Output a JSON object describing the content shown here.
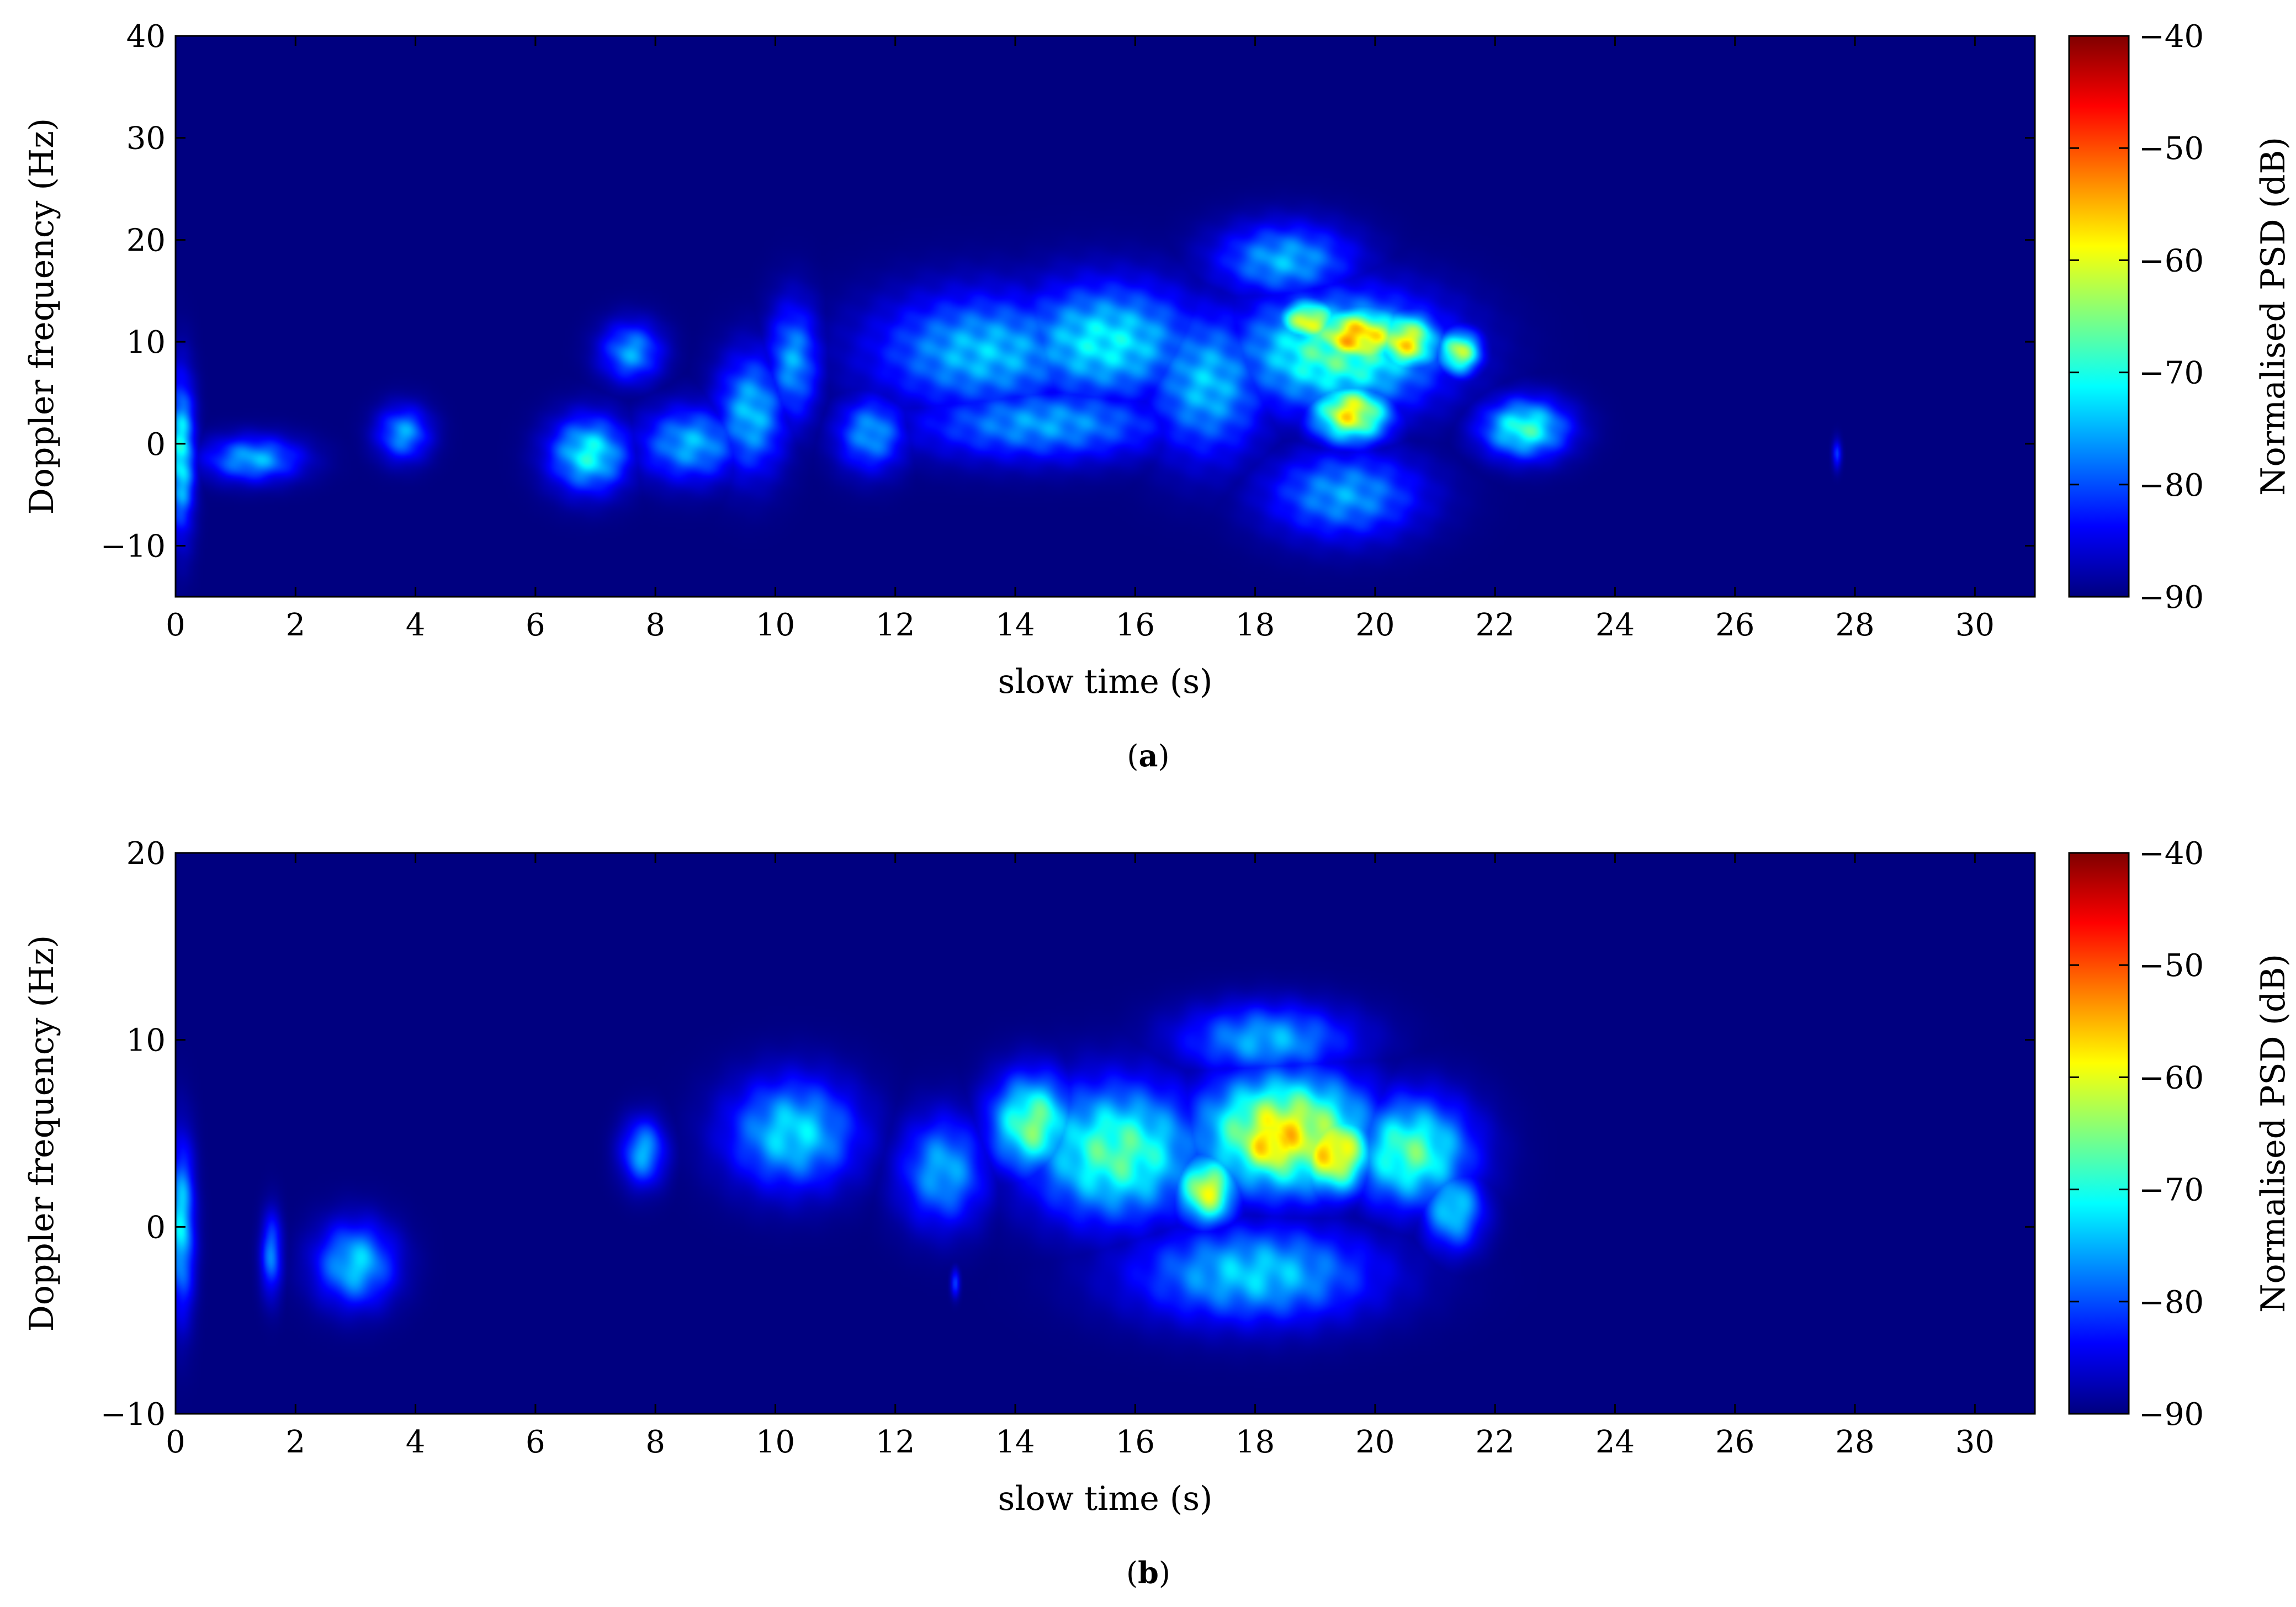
{
  "chart_data": [
    {
      "type": "heatmap",
      "caption": {
        "open": "(",
        "letter": "a",
        "close": ")"
      },
      "title": "",
      "xlabel": "slow time (s)",
      "ylabel": "Doppler frequency (Hz)",
      "xlim": [
        0,
        31
      ],
      "ylim": [
        -15,
        40
      ],
      "xticks": [
        "0",
        "2",
        "4",
        "6",
        "8",
        "10",
        "12",
        "14",
        "16",
        "18",
        "20",
        "22",
        "24",
        "26",
        "28",
        "30"
      ],
      "yticks": [
        "−10",
        "0",
        "10",
        "20",
        "30",
        "40"
      ],
      "ytick_values": [
        -10,
        0,
        10,
        20,
        30,
        40
      ],
      "colorbar": {
        "label": "Normalised PSD (dB)",
        "range": [
          -90,
          -40
        ],
        "ticks": [
          "−90",
          "−80",
          "−70",
          "−60",
          "−50",
          "−40"
        ],
        "tick_values": [
          -90,
          -80,
          -70,
          -60,
          -50,
          -40
        ]
      },
      "background_db": -90,
      "blobs": [
        {
          "t": 0.1,
          "f": -1,
          "st": 0.15,
          "sf": 5,
          "db": -68
        },
        {
          "t": 1.3,
          "f": -1.5,
          "st": 0.55,
          "sf": 1.5,
          "db": -73
        },
        {
          "t": 3.8,
          "f": 1,
          "st": 0.3,
          "sf": 1.8,
          "db": -74
        },
        {
          "t": 6.9,
          "f": -1,
          "st": 0.45,
          "sf": 2.5,
          "db": -68
        },
        {
          "t": 7.6,
          "f": 9,
          "st": 0.35,
          "sf": 2,
          "db": -74
        },
        {
          "t": 8.6,
          "f": 0,
          "st": 0.6,
          "sf": 2.5,
          "db": -73
        },
        {
          "t": 9.6,
          "f": 3,
          "st": 0.4,
          "sf": 4,
          "db": -72
        },
        {
          "t": 10.3,
          "f": 8,
          "st": 0.3,
          "sf": 4,
          "db": -74
        },
        {
          "t": 11.6,
          "f": 1,
          "st": 0.4,
          "sf": 2.5,
          "db": -74
        },
        {
          "t": 13.5,
          "f": 9,
          "st": 1.3,
          "sf": 4,
          "db": -72
        },
        {
          "t": 15.5,
          "f": 10,
          "st": 1.1,
          "sf": 4,
          "db": -69
        },
        {
          "t": 14.5,
          "f": 2,
          "st": 1.5,
          "sf": 2.5,
          "db": -74
        },
        {
          "t": 17.2,
          "f": 6,
          "st": 0.7,
          "sf": 5,
          "db": -72
        },
        {
          "t": 19.4,
          "f": 9,
          "st": 1.2,
          "sf": 4,
          "db": -64
        },
        {
          "t": 19.7,
          "f": 10.5,
          "st": 0.6,
          "sf": 2,
          "db": -50
        },
        {
          "t": 18.9,
          "f": 12,
          "st": 0.35,
          "sf": 1.5,
          "db": -55
        },
        {
          "t": 20.5,
          "f": 10,
          "st": 0.4,
          "sf": 2,
          "db": -54
        },
        {
          "t": 19.6,
          "f": 3,
          "st": 0.45,
          "sf": 2,
          "db": -54
        },
        {
          "t": 19.5,
          "f": -5,
          "st": 0.9,
          "sf": 3,
          "db": -74
        },
        {
          "t": 18.5,
          "f": 18,
          "st": 0.8,
          "sf": 2.5,
          "db": -73
        },
        {
          "t": 21.4,
          "f": 9,
          "st": 0.25,
          "sf": 1.5,
          "db": -58
        },
        {
          "t": 22.5,
          "f": 1.5,
          "st": 0.5,
          "sf": 2,
          "db": -66
        },
        {
          "t": 27.7,
          "f": -1,
          "st": 0.05,
          "sf": 1,
          "db": -80
        }
      ]
    },
    {
      "type": "heatmap",
      "caption": {
        "open": "(",
        "letter": "b",
        "close": ")"
      },
      "title": "",
      "xlabel": "slow time (s)",
      "ylabel": "Doppler frequency (Hz)",
      "xlim": [
        0,
        31
      ],
      "ylim": [
        -10,
        20
      ],
      "xticks": [
        "0",
        "2",
        "4",
        "6",
        "8",
        "10",
        "12",
        "14",
        "16",
        "18",
        "20",
        "22",
        "24",
        "26",
        "28",
        "30"
      ],
      "yticks": [
        "−10",
        "0",
        "10",
        "20"
      ],
      "ytick_values": [
        -10,
        0,
        10,
        20
      ],
      "colorbar": {
        "label": "Normalised PSD (dB)",
        "range": [
          -90,
          -40
        ],
        "ticks": [
          "−90",
          "−80",
          "−70",
          "−60",
          "−50",
          "−40"
        ],
        "tick_values": [
          -90,
          -80,
          -70,
          -60,
          -50,
          -40
        ]
      },
      "background_db": -90,
      "blobs": [
        {
          "t": 0.1,
          "f": 0,
          "st": 0.15,
          "sf": 3,
          "db": -70
        },
        {
          "t": 1.6,
          "f": -1.5,
          "st": 0.12,
          "sf": 1.5,
          "db": -76
        },
        {
          "t": 3.0,
          "f": -2,
          "st": 0.45,
          "sf": 1.5,
          "db": -71
        },
        {
          "t": 7.8,
          "f": 4,
          "st": 0.25,
          "sf": 1.2,
          "db": -73
        },
        {
          "t": 10.3,
          "f": 5,
          "st": 0.75,
          "sf": 2,
          "db": -70
        },
        {
          "t": 12.8,
          "f": 3,
          "st": 0.5,
          "sf": 2,
          "db": -73
        },
        {
          "t": 14.3,
          "f": 5.5,
          "st": 0.5,
          "sf": 1.8,
          "db": -62
        },
        {
          "t": 15.7,
          "f": 4,
          "st": 1.0,
          "sf": 2.5,
          "db": -64
        },
        {
          "t": 17.2,
          "f": 2,
          "st": 0.35,
          "sf": 1.3,
          "db": -56
        },
        {
          "t": 18.5,
          "f": 5,
          "st": 1.0,
          "sf": 2.2,
          "db": -54
        },
        {
          "t": 18.3,
          "f": 4.5,
          "st": 0.5,
          "sf": 1.5,
          "db": -50
        },
        {
          "t": 19.3,
          "f": 4,
          "st": 0.45,
          "sf": 1.5,
          "db": -51
        },
        {
          "t": 18.0,
          "f": -2.5,
          "st": 1.4,
          "sf": 1.8,
          "db": -71
        },
        {
          "t": 20.6,
          "f": 4,
          "st": 0.7,
          "sf": 2,
          "db": -64
        },
        {
          "t": 21.3,
          "f": 1,
          "st": 0.35,
          "sf": 1.5,
          "db": -70
        },
        {
          "t": 18.2,
          "f": 10,
          "st": 1.0,
          "sf": 1.3,
          "db": -73
        },
        {
          "t": 13.0,
          "f": -3,
          "st": 0.05,
          "sf": 0.5,
          "db": -78
        }
      ]
    }
  ]
}
